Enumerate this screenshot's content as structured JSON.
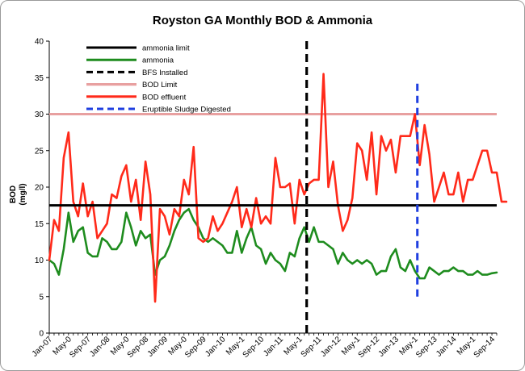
{
  "chart_data": {
    "type": "line",
    "title": "Royston GA Monthly BOD & Ammonia",
    "ylabel": "BOD (mg/l)",
    "ylabel_lines": [
      "BOD",
      "(mg/l)"
    ],
    "xlabel": "",
    "ylim": [
      0,
      40
    ],
    "yticks": [
      0,
      5,
      10,
      15,
      20,
      25,
      30,
      35,
      40
    ],
    "xlim": [
      0,
      93
    ],
    "x_tick_labels": [
      {
        "label": "Jan-07",
        "index": 0
      },
      {
        "label": "May-0",
        "index": 4
      },
      {
        "label": "Sep-07",
        "index": 8
      },
      {
        "label": "Jan-08",
        "index": 12
      },
      {
        "label": "May-0",
        "index": 16
      },
      {
        "label": "Sep-08",
        "index": 20
      },
      {
        "label": "Jan-09",
        "index": 24
      },
      {
        "label": "May-0",
        "index": 28
      },
      {
        "label": "Sep-09",
        "index": 32
      },
      {
        "label": "Jan-10",
        "index": 36
      },
      {
        "label": "May-1",
        "index": 40
      },
      {
        "label": "Sep-10",
        "index": 44
      },
      {
        "label": "Jan-11",
        "index": 48
      },
      {
        "label": "May-1",
        "index": 52
      },
      {
        "label": "Sep-11",
        "index": 56
      },
      {
        "label": "Jan-12",
        "index": 60
      },
      {
        "label": "May-1",
        "index": 64
      },
      {
        "label": "Sep-12",
        "index": 68
      },
      {
        "label": "Jan-13",
        "index": 72
      },
      {
        "label": "May-1",
        "index": 76
      },
      {
        "label": "Sep-13",
        "index": 80
      },
      {
        "label": "Jan-14",
        "index": 84
      },
      {
        "label": "May-1",
        "index": 88
      },
      {
        "label": "Sep-14",
        "index": 92
      }
    ],
    "series": [
      {
        "name": "ammonia limit",
        "kind": "hline",
        "color": "#000000",
        "value": 17.5
      },
      {
        "name": "ammonia",
        "kind": "line",
        "color": "#1e8c1e",
        "values": [
          10,
          9.5,
          8,
          11.5,
          16.5,
          12.5,
          14,
          14.5,
          11,
          10.5,
          10.5,
          13,
          12.5,
          11.5,
          11.5,
          12.5,
          16.5,
          14.5,
          12,
          14,
          13,
          13.5,
          8,
          10,
          10.5,
          12,
          14,
          15.5,
          16.5,
          17,
          15.5,
          14.5,
          13,
          12.5,
          13,
          12.5,
          12,
          11,
          11,
          14,
          11,
          13,
          14.5,
          12,
          11.5,
          9.5,
          11,
          10,
          9.5,
          8.5,
          11,
          10.5,
          13,
          14.5,
          12.5,
          14.5,
          12.5,
          12.5,
          12,
          11.5,
          9.5,
          11,
          10,
          9.5,
          10,
          9.5,
          10,
          9.5,
          8,
          8.5,
          8.5,
          10.5,
          11.5,
          9,
          8.5,
          10,
          8.5,
          7.5,
          7.5,
          9,
          8.5,
          8,
          8.5,
          8.5,
          9,
          8.5,
          8.5,
          8,
          8,
          8.5,
          8,
          8,
          8.2,
          8.3
        ]
      },
      {
        "name": "BFS Installed",
        "kind": "vline",
        "color": "#000000",
        "x": 53.5
      },
      {
        "name": "BOD Limit",
        "kind": "hline",
        "color": "#e8a0a0",
        "value": 30
      },
      {
        "name": "BOD effluent",
        "kind": "line",
        "color": "#ff2a1a",
        "values": [
          10,
          15.5,
          14,
          24,
          27.5,
          18,
          16,
          20.5,
          16,
          18,
          13,
          14,
          15,
          19,
          18.5,
          21.5,
          23,
          18,
          21,
          15.5,
          23.5,
          19,
          4.3,
          17,
          16,
          13.5,
          17,
          16,
          21,
          19,
          25.5,
          13,
          12.5,
          13,
          16,
          14,
          15,
          16.5,
          18,
          20,
          14.5,
          17,
          14.5,
          18.5,
          15,
          16,
          15,
          24,
          20,
          20,
          20.5,
          15,
          21,
          19,
          20.5,
          21,
          21,
          35.5,
          20,
          23.5,
          17.5,
          14,
          15.5,
          18.5,
          26,
          25,
          21,
          27.5,
          19,
          27,
          25,
          26.5,
          22,
          27,
          27,
          27,
          30,
          23,
          28.5,
          24.5,
          18,
          20,
          22,
          19,
          19,
          22,
          18,
          21,
          21,
          23,
          25,
          25,
          22,
          22,
          18,
          18
        ]
      },
      {
        "name": "Eruptible Sludge Digested",
        "kind": "vline",
        "color": "#1f3fe0",
        "x": 76.5,
        "y_range": [
          5,
          34.5
        ]
      }
    ],
    "legend_placement": "top-left",
    "grid": false
  }
}
